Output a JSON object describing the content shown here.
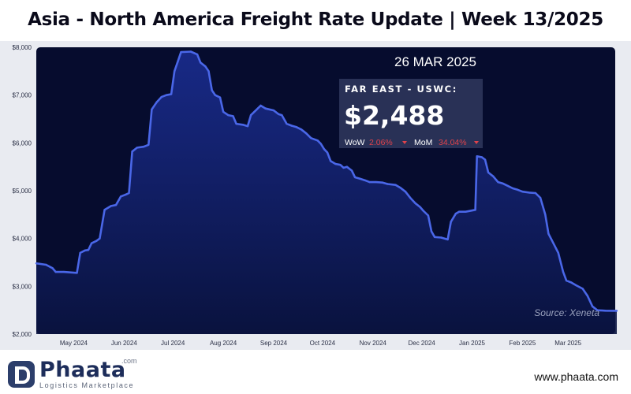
{
  "header": {
    "title": "Asia - North America Freight Rate Update | Week 13/2025"
  },
  "info_box": {
    "date": "26 MAR 2025",
    "route": "FAR EAST - USWC:",
    "price": "$2,488",
    "wow_label": "WoW",
    "wow_value": "2.06%",
    "mom_label": "MoM",
    "mom_value": "34.04%",
    "down_color": "#e0424b"
  },
  "source": "Source: Xeneta",
  "footer": {
    "logo_name": "Phaata",
    "logo_tld": ".com",
    "logo_tagline": "Logistics Marketplace",
    "website": "www.phaata.com"
  },
  "colors": {
    "plot_bg": "#060c2e",
    "line": "#4a67e8",
    "fill": "#15257a"
  },
  "chart_data": {
    "type": "area",
    "title": "",
    "xlabel": "",
    "ylabel": "",
    "ylim": [
      2000,
      8000
    ],
    "grid": false,
    "y_ticks": [
      {
        "value": 2000,
        "label": "$2,000"
      },
      {
        "value": 3000,
        "label": "$3,000"
      },
      {
        "value": 4000,
        "label": "$4,000"
      },
      {
        "value": 5000,
        "label": "$5,000"
      },
      {
        "value": 6000,
        "label": "$6,000"
      },
      {
        "value": 7000,
        "label": "$7,000"
      },
      {
        "value": 8000,
        "label": "$8,000"
      }
    ],
    "x_ticks": [
      {
        "date": "2024-05-01",
        "label": "May 2024"
      },
      {
        "date": "2024-06-01",
        "label": "Jun 2024"
      },
      {
        "date": "2024-07-01",
        "label": "Jul 2024"
      },
      {
        "date": "2024-08-01",
        "label": "Aug 2024"
      },
      {
        "date": "2024-09-01",
        "label": "Sep 2024"
      },
      {
        "date": "2024-10-01",
        "label": "Oct 2024"
      },
      {
        "date": "2024-11-01",
        "label": "Nov 2024"
      },
      {
        "date": "2024-12-01",
        "label": "Dec 2024"
      },
      {
        "date": "2025-01-01",
        "label": "Jan 2025"
      },
      {
        "date": "2025-02-01",
        "label": "Feb 2025"
      },
      {
        "date": "2025-03-01",
        "label": "Mar 2025"
      }
    ],
    "x_range": [
      "2024-04-08",
      "2025-03-31"
    ],
    "series": [
      {
        "points": [
          [
            "2024-04-08",
            3480
          ],
          [
            "2024-04-14",
            3450
          ],
          [
            "2024-04-18",
            3380
          ],
          [
            "2024-04-20",
            3300
          ],
          [
            "2024-04-25",
            3300
          ],
          [
            "2024-04-29",
            3290
          ],
          [
            "2024-05-03",
            3280
          ],
          [
            "2024-05-05",
            3700
          ],
          [
            "2024-05-08",
            3750
          ],
          [
            "2024-05-10",
            3760
          ],
          [
            "2024-05-12",
            3900
          ],
          [
            "2024-05-15",
            3950
          ],
          [
            "2024-05-17",
            4000
          ],
          [
            "2024-05-20",
            4600
          ],
          [
            "2024-05-24",
            4680
          ],
          [
            "2024-05-27",
            4700
          ],
          [
            "2024-05-30",
            4880
          ],
          [
            "2024-06-02",
            4920
          ],
          [
            "2024-06-04",
            4950
          ],
          [
            "2024-06-06",
            5820
          ],
          [
            "2024-06-09",
            5900
          ],
          [
            "2024-06-13",
            5920
          ],
          [
            "2024-06-16",
            5960
          ],
          [
            "2024-06-18",
            6700
          ],
          [
            "2024-06-21",
            6850
          ],
          [
            "2024-06-24",
            6960
          ],
          [
            "2024-06-27",
            7000
          ],
          [
            "2024-06-30",
            7020
          ],
          [
            "2024-07-02",
            7500
          ],
          [
            "2024-07-04",
            7700
          ],
          [
            "2024-07-06",
            7900
          ],
          [
            "2024-07-12",
            7910
          ],
          [
            "2024-07-16",
            7850
          ],
          [
            "2024-07-18",
            7680
          ],
          [
            "2024-07-21",
            7600
          ],
          [
            "2024-07-23",
            7500
          ],
          [
            "2024-07-25",
            7100
          ],
          [
            "2024-07-27",
            7000
          ],
          [
            "2024-07-30",
            6950
          ],
          [
            "2024-08-01",
            6650
          ],
          [
            "2024-08-04",
            6580
          ],
          [
            "2024-08-07",
            6560
          ],
          [
            "2024-08-09",
            6400
          ],
          [
            "2024-08-13",
            6380
          ],
          [
            "2024-08-16",
            6350
          ],
          [
            "2024-08-18",
            6580
          ],
          [
            "2024-08-21",
            6680
          ],
          [
            "2024-08-24",
            6780
          ],
          [
            "2024-08-27",
            6720
          ],
          [
            "2024-09-01",
            6680
          ],
          [
            "2024-09-04",
            6600
          ],
          [
            "2024-09-06",
            6580
          ],
          [
            "2024-09-09",
            6400
          ],
          [
            "2024-09-12",
            6360
          ],
          [
            "2024-09-15",
            6330
          ],
          [
            "2024-09-18",
            6280
          ],
          [
            "2024-09-21",
            6200
          ],
          [
            "2024-09-24",
            6100
          ],
          [
            "2024-09-28",
            6050
          ],
          [
            "2024-09-30",
            5980
          ],
          [
            "2024-10-02",
            5870
          ],
          [
            "2024-10-04",
            5800
          ],
          [
            "2024-10-06",
            5620
          ],
          [
            "2024-10-09",
            5560
          ],
          [
            "2024-10-12",
            5540
          ],
          [
            "2024-10-14",
            5480
          ],
          [
            "2024-10-16",
            5500
          ],
          [
            "2024-10-19",
            5420
          ],
          [
            "2024-10-21",
            5280
          ],
          [
            "2024-10-24",
            5250
          ],
          [
            "2024-10-27",
            5220
          ],
          [
            "2024-10-30",
            5180
          ],
          [
            "2024-11-03",
            5180
          ],
          [
            "2024-11-07",
            5170
          ],
          [
            "2024-11-10",
            5140
          ],
          [
            "2024-11-15",
            5120
          ],
          [
            "2024-11-18",
            5060
          ],
          [
            "2024-11-21",
            4980
          ],
          [
            "2024-11-24",
            4850
          ],
          [
            "2024-11-27",
            4740
          ],
          [
            "2024-11-30",
            4660
          ],
          [
            "2024-12-02",
            4580
          ],
          [
            "2024-12-05",
            4480
          ],
          [
            "2024-12-07",
            4150
          ],
          [
            "2024-12-09",
            4030
          ],
          [
            "2024-12-13",
            4020
          ],
          [
            "2024-12-17",
            3980
          ],
          [
            "2024-12-19",
            4350
          ],
          [
            "2024-12-22",
            4520
          ],
          [
            "2024-12-24",
            4560
          ],
          [
            "2024-12-28",
            4560
          ],
          [
            "2025-01-03",
            4600
          ],
          [
            "2025-01-04",
            5720
          ],
          [
            "2025-01-07",
            5700
          ],
          [
            "2025-01-09",
            5650
          ],
          [
            "2025-01-11",
            5380
          ],
          [
            "2025-01-14",
            5300
          ],
          [
            "2025-01-17",
            5180
          ],
          [
            "2025-01-20",
            5150
          ],
          [
            "2025-01-23",
            5100
          ],
          [
            "2025-01-26",
            5050
          ],
          [
            "2025-01-29",
            5020
          ],
          [
            "2025-02-01",
            4980
          ],
          [
            "2025-02-05",
            4960
          ],
          [
            "2025-02-09",
            4950
          ],
          [
            "2025-02-12",
            4850
          ],
          [
            "2025-02-15",
            4500
          ],
          [
            "2025-02-17",
            4100
          ],
          [
            "2025-02-20",
            3900
          ],
          [
            "2025-02-23",
            3700
          ],
          [
            "2025-02-26",
            3300
          ],
          [
            "2025-02-28",
            3120
          ],
          [
            "2025-03-03",
            3080
          ],
          [
            "2025-03-06",
            3020
          ],
          [
            "2025-03-10",
            2950
          ],
          [
            "2025-03-13",
            2800
          ],
          [
            "2025-03-16",
            2580
          ],
          [
            "2025-03-19",
            2500
          ],
          [
            "2025-03-24",
            2490
          ],
          [
            "2025-03-31",
            2488
          ]
        ]
      }
    ]
  }
}
